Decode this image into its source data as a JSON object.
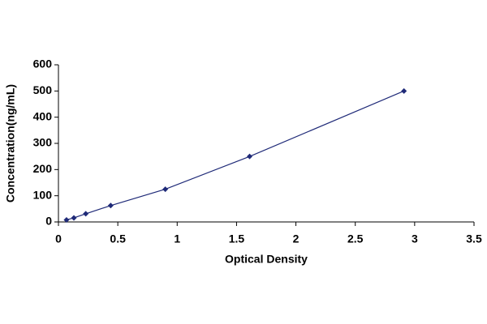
{
  "chart_data": {
    "type": "scatter-line",
    "x_label": "Optical Density",
    "y_label": "Concentration(ng/mL)",
    "x": [
      0.068,
      0.13,
      0.23,
      0.44,
      0.9,
      1.61,
      2.91
    ],
    "values": [
      7.8,
      15.6,
      31.25,
      62.5,
      125,
      250,
      500
    ],
    "color": "#1f2a78",
    "xlim": [
      0,
      3.5
    ],
    "xticks": [
      0,
      0.5,
      1,
      1.5,
      2,
      2.5,
      3,
      3.5
    ],
    "ylim": [
      0,
      600
    ],
    "yticks": [
      0,
      100,
      200,
      300,
      400,
      500,
      600
    ],
    "grid": false
  }
}
